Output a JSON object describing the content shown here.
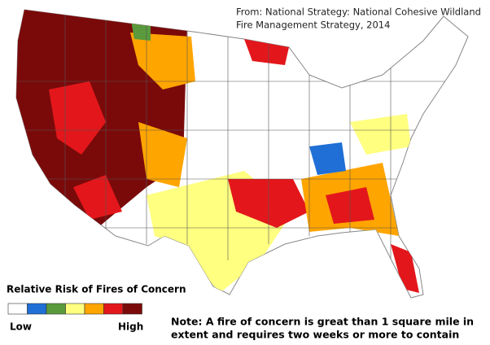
{
  "source": {
    "lines": [
      "From: National Strategy: National Cohesive Wildland",
      "Fire Management Strategy, 2014"
    ]
  },
  "legend": {
    "title": "Relative Risk of Fires of Concern",
    "colors": [
      "#ffffff",
      "#1f6fd6",
      "#5a9a3c",
      "#ffff80",
      "#ffa500",
      "#e3171b",
      "#7a0a0a"
    ],
    "low": "Low",
    "high": "High"
  },
  "note": {
    "lines": [
      "Note: A fire of concern is great than 1 square mile in",
      "extent and requires two weeks or more to contain"
    ]
  }
}
